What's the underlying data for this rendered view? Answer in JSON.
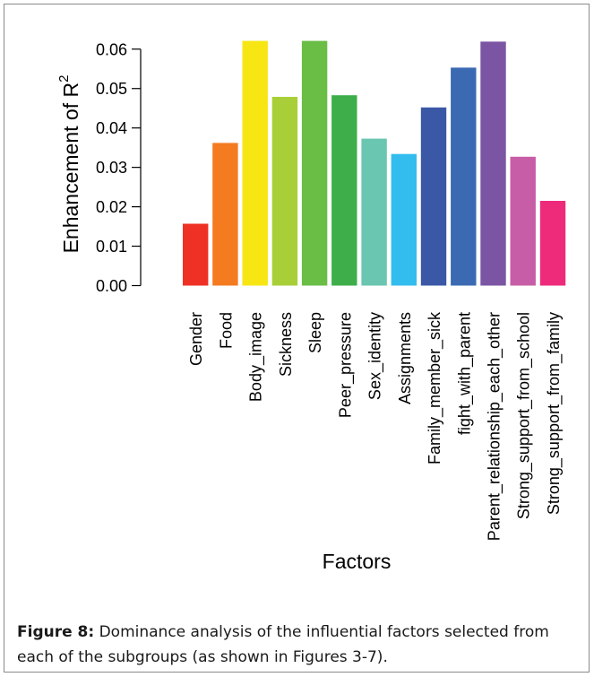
{
  "figure": {
    "caption_label": "Figure 8:",
    "caption_text": " Dominance analysis of the influential factors selected from each of the subgroups (as shown in Figures 3-7)."
  },
  "chart_data": {
    "type": "bar",
    "xlabel": "Factors",
    "ylabel_main": "Enhancement  of  R",
    "ylabel_superscript": "2",
    "ylim": [
      0,
      0.062
    ],
    "yticks": [
      "0.00",
      "0.01",
      "0.02",
      "0.03",
      "0.04",
      "0.05",
      "0.06"
    ],
    "grid": false,
    "categories": [
      "Gender",
      "Food",
      "Body_image",
      "Sickness",
      "Sleep",
      "Peer_pressure",
      "Sex_identity",
      "Assignments",
      "Family_member_sick",
      "fight_with_parent",
      "Parent_relationship_each_other",
      "Strong_support_from_school",
      "Strong_support_from_family"
    ],
    "values": [
      0.0157,
      0.0362,
      0.0621,
      0.0479,
      0.0621,
      0.0483,
      0.0373,
      0.0334,
      0.0452,
      0.0553,
      0.0619,
      0.0327,
      0.0215
    ],
    "colors": [
      "#ee3124",
      "#f47b20",
      "#f7e614",
      "#a8cf38",
      "#6abd45",
      "#3dae49",
      "#6ac6b0",
      "#33bdef",
      "#3b58a7",
      "#3b6ab3",
      "#7b55a4",
      "#c75da6",
      "#ee2a7b"
    ]
  }
}
